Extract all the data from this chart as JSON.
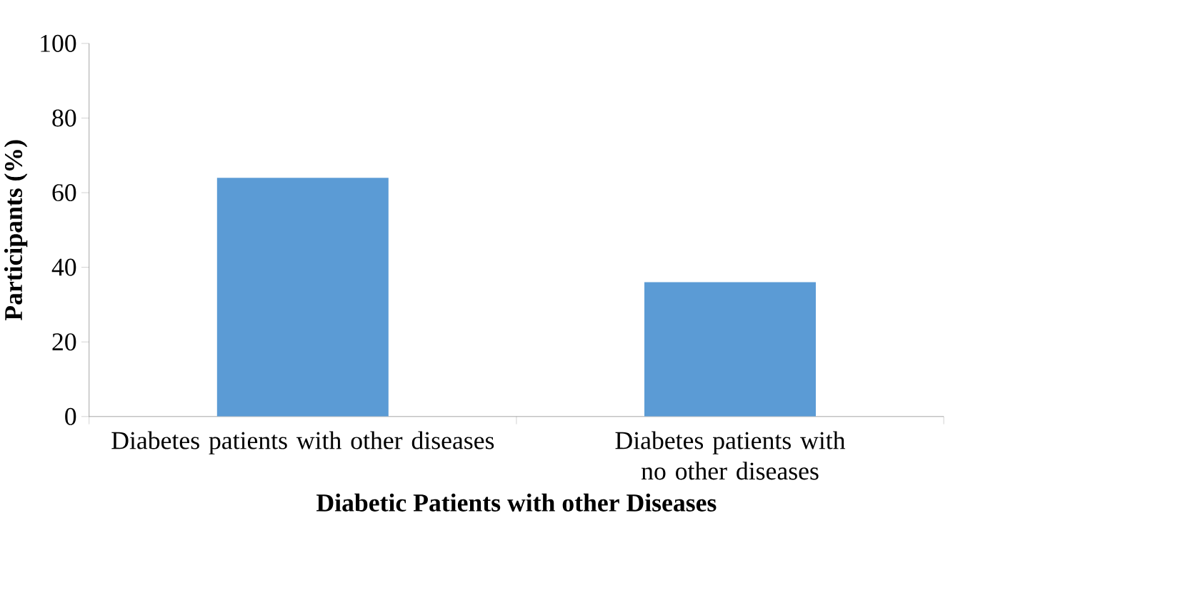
{
  "chart_data": {
    "type": "bar",
    "xlabel": "Diabetic Patients with other Diseases",
    "ylabel": "Participants (%)",
    "categories": [
      "Diabetes patients with other diseases",
      "Diabetes patients with no other diseases"
    ],
    "values": [
      64,
      36
    ],
    "color": "#5b9bd5",
    "ylim": [
      0,
      100
    ],
    "yticks": [
      0,
      20,
      40,
      60,
      80,
      100
    ]
  }
}
